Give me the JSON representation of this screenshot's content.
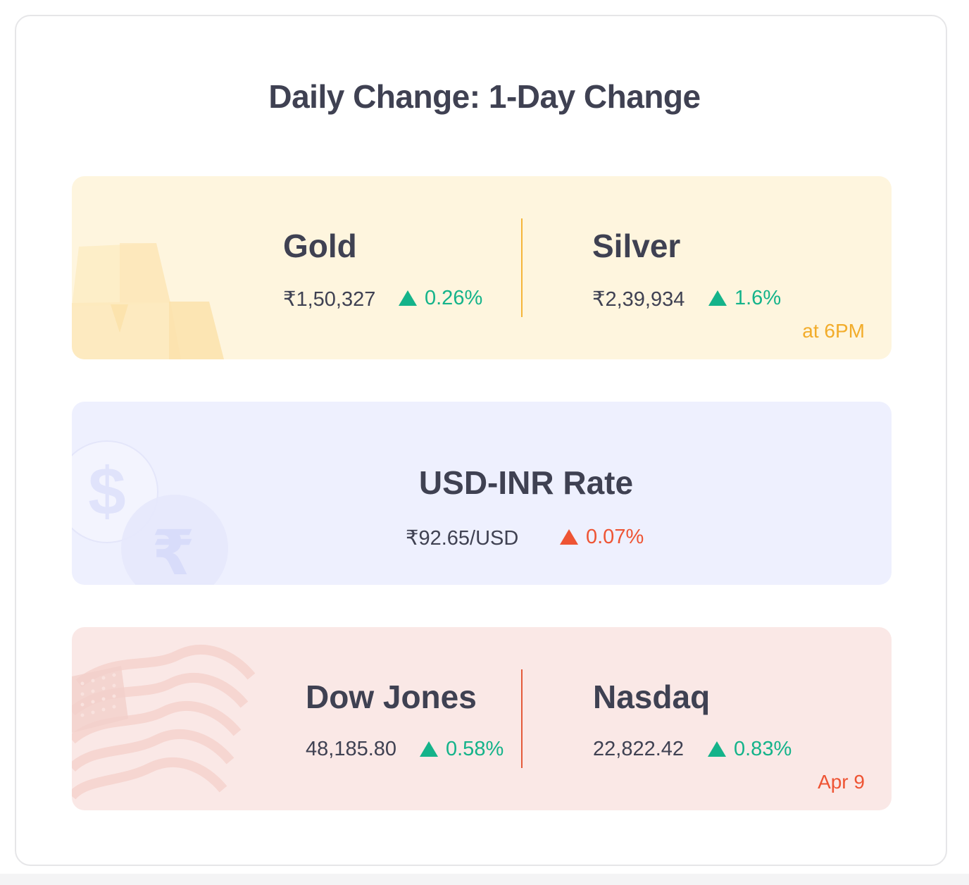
{
  "title": "Daily Change: 1-Day Change",
  "colors": {
    "up_green": "#14b38a",
    "up_red": "#ee5434",
    "gold_panel": "#fef5de",
    "fx_panel": "#eef0fe",
    "us_panel": "#fae8e6",
    "gold_accent": "#f5b53a",
    "us_accent": "#e45a3a"
  },
  "commodities": {
    "decoration_icon": "gold-bars-icon",
    "gold": {
      "name": "Gold",
      "value": "₹1,50,327",
      "change": "0.26%",
      "direction": "up"
    },
    "silver": {
      "name": "Silver",
      "value": "₹2,39,934",
      "change": "1.6%",
      "direction": "up"
    },
    "timestamp": "at 6PM"
  },
  "currency": {
    "decoration_icon": "dollar-rupee-coins-icon",
    "name": "USD-INR Rate",
    "value": "₹92.65/USD",
    "change": "0.07%",
    "direction": "up"
  },
  "indices": {
    "decoration_icon": "us-flag-icon",
    "dow": {
      "name": "Dow Jones",
      "value": "48,185.80",
      "change": "0.58%",
      "direction": "up"
    },
    "nasdaq": {
      "name": "Nasdaq",
      "value": "22,822.42",
      "change": "0.83%",
      "direction": "up"
    },
    "timestamp": "Apr 9"
  }
}
